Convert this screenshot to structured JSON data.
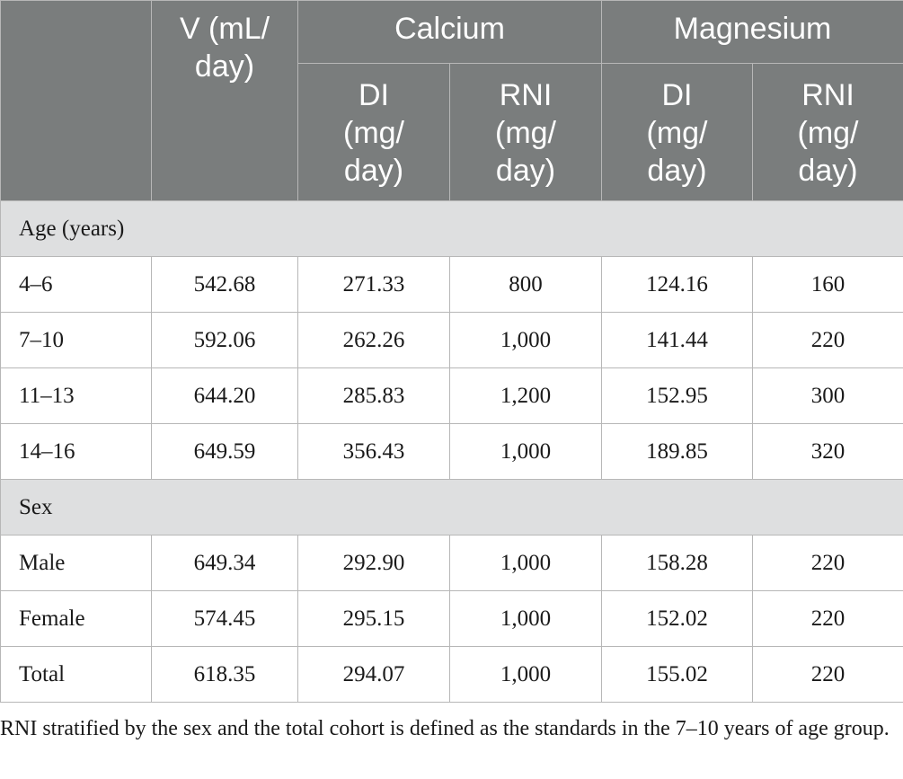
{
  "header": {
    "v_label": "V (mL/\nday)",
    "calcium": "Calcium",
    "magnesium": "Magnesium",
    "calcium_di": "DI\n(mg/\nday)",
    "calcium_rni": "RNI\n(mg/\nday)",
    "magnesium_di": "DI\n(mg/\nday)",
    "magnesium_rni": "RNI\n(mg/\nday)"
  },
  "groups": {
    "age": "Age (years)",
    "sex": "Sex"
  },
  "age_rows": [
    {
      "label": "4–6",
      "v": "542.68",
      "ca_di": "271.33",
      "ca_rni": "800",
      "mg_di": "124.16",
      "mg_rni": "160"
    },
    {
      "label": "7–10",
      "v": "592.06",
      "ca_di": "262.26",
      "ca_rni": "1,000",
      "mg_di": "141.44",
      "mg_rni": "220"
    },
    {
      "label": "11–13",
      "v": "644.20",
      "ca_di": "285.83",
      "ca_rni": "1,200",
      "mg_di": "152.95",
      "mg_rni": "300"
    },
    {
      "label": "14–16",
      "v": "649.59",
      "ca_di": "356.43",
      "ca_rni": "1,000",
      "mg_di": "189.85",
      "mg_rni": "320"
    }
  ],
  "sex_rows": [
    {
      "label": "Male",
      "v": "649.34",
      "ca_di": "292.90",
      "ca_rni": "1,000",
      "mg_di": "158.28",
      "mg_rni": "220"
    },
    {
      "label": "Female",
      "v": "574.45",
      "ca_di": "295.15",
      "ca_rni": "1,000",
      "mg_di": "152.02",
      "mg_rni": "220"
    },
    {
      "label": "Total",
      "v": "618.35",
      "ca_di": "294.07",
      "ca_rni": "1,000",
      "mg_di": "155.02",
      "mg_rni": "220"
    }
  ],
  "footnote": "RNI stratified by the sex and the total cohort is defined as the standards in the 7–10 years of age group."
}
